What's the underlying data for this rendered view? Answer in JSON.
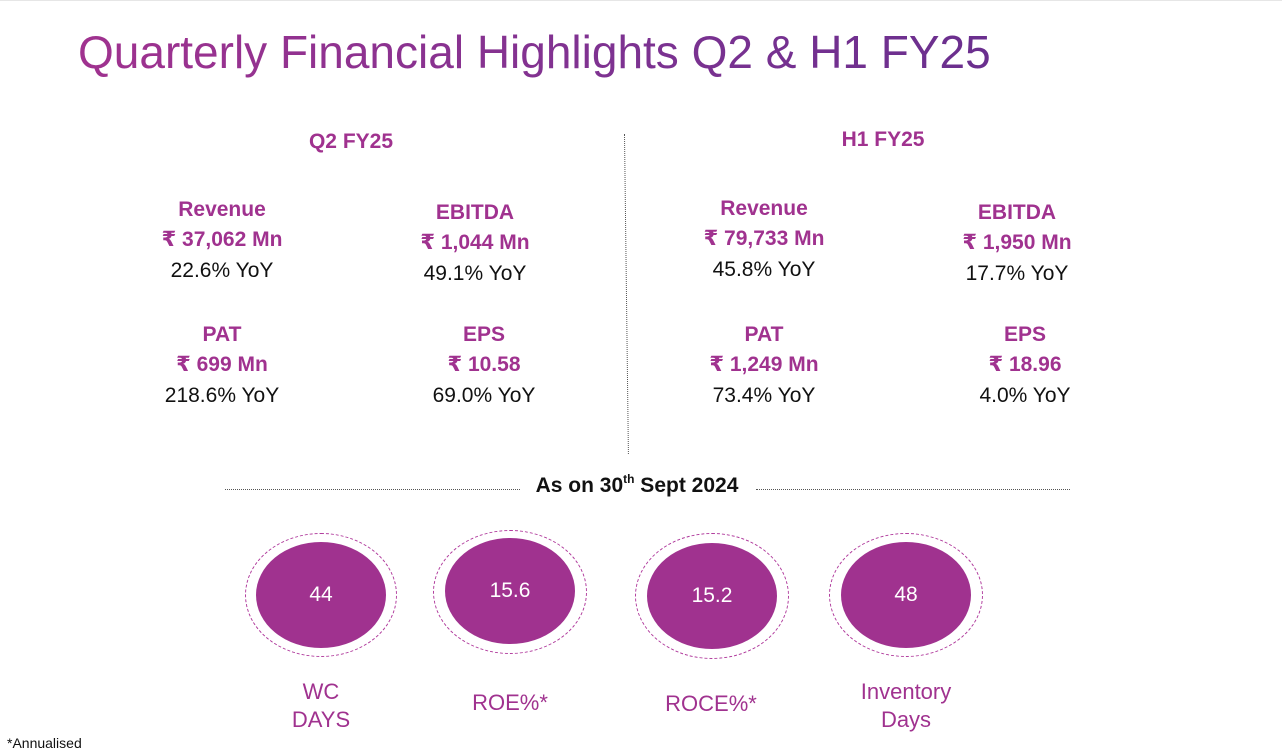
{
  "title": "Quarterly Financial Highlights Q2 & H1 FY25",
  "q2": {
    "heading": "Q2 FY25",
    "metrics": [
      {
        "label": "Revenue",
        "value": "₹ 37,062 Mn",
        "yoy": "22.6% YoY"
      },
      {
        "label": "EBITDA",
        "value": "₹ 1,044 Mn",
        "yoy": "49.1% YoY"
      },
      {
        "label": "PAT",
        "value": "₹ 699 Mn",
        "yoy": "218.6% YoY"
      },
      {
        "label": "EPS",
        "value": "₹ 10.58",
        "yoy": "69.0% YoY"
      }
    ]
  },
  "h1": {
    "heading": "H1 FY25",
    "metrics": [
      {
        "label": "Revenue",
        "value": "₹ 79,733 Mn",
        "yoy": "45.8% YoY"
      },
      {
        "label": "EBITDA",
        "value": "₹ 1,950 Mn",
        "yoy": "17.7% YoY"
      },
      {
        "label": "PAT",
        "value": "₹ 1,249 Mn",
        "yoy": "73.4% YoY"
      },
      {
        "label": "EPS",
        "value": "₹ 18.96",
        "yoy": "4.0% YoY"
      }
    ]
  },
  "as_on": {
    "prefix": "As on 30",
    "superscript": "th",
    "suffix": " Sept 2024"
  },
  "kpis": [
    {
      "value": "44",
      "label": "WC\nDAYS"
    },
    {
      "value": "15.6",
      "label": "ROE%*"
    },
    {
      "value": "15.2",
      "label": "ROCE%*"
    },
    {
      "value": "48",
      "label": "Inventory\nDays"
    }
  ],
  "footnote": "*Annualised",
  "colors": {
    "accent": "#a0328f",
    "title_gradient_end": "#6a2f8e",
    "text": "#111111"
  }
}
